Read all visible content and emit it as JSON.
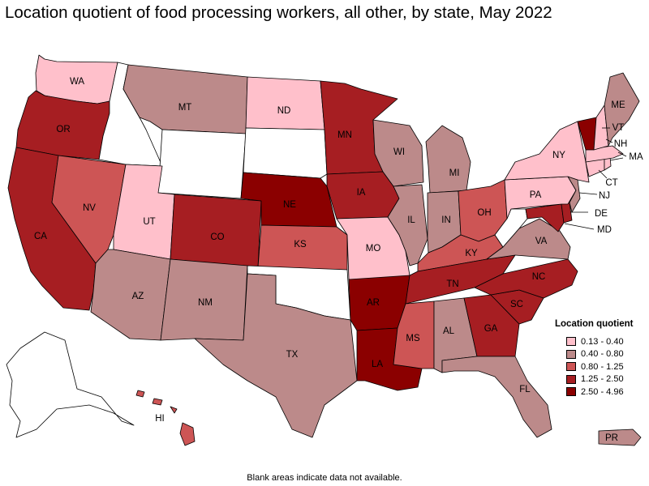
{
  "title": "Location quotient of food processing workers, all other, by state, May 2022",
  "legend": {
    "title": "Location quotient",
    "bins": [
      {
        "label": "0.13 - 0.40",
        "color": "#ffc0cb"
      },
      {
        "label": "0.40 - 0.80",
        "color": "#bc8a8a"
      },
      {
        "label": "0.80 - 1.25",
        "color": "#cd5555"
      },
      {
        "label": "1.25 - 2.50",
        "color": "#a61e22"
      },
      {
        "label": "2.50 - 4.96",
        "color": "#8b0000"
      }
    ]
  },
  "footnote": "Blank areas indicate data not available.",
  "no_data_color": "#ffffff",
  "states": [
    {
      "abbr": "WA",
      "bin": 0
    },
    {
      "abbr": "OR",
      "bin": 3
    },
    {
      "abbr": "CA",
      "bin": 3
    },
    {
      "abbr": "NV",
      "bin": 2
    },
    {
      "abbr": "ID",
      "bin": null
    },
    {
      "abbr": "MT",
      "bin": 1
    },
    {
      "abbr": "WY",
      "bin": null
    },
    {
      "abbr": "UT",
      "bin": 0
    },
    {
      "abbr": "AZ",
      "bin": 1
    },
    {
      "abbr": "CO",
      "bin": 3
    },
    {
      "abbr": "NM",
      "bin": 1
    },
    {
      "abbr": "ND",
      "bin": 0
    },
    {
      "abbr": "SD",
      "bin": null
    },
    {
      "abbr": "NE",
      "bin": 4
    },
    {
      "abbr": "KS",
      "bin": 2
    },
    {
      "abbr": "OK",
      "bin": null
    },
    {
      "abbr": "TX",
      "bin": 1
    },
    {
      "abbr": "MN",
      "bin": 3
    },
    {
      "abbr": "IA",
      "bin": 3
    },
    {
      "abbr": "MO",
      "bin": 0
    },
    {
      "abbr": "AR",
      "bin": 4
    },
    {
      "abbr": "LA",
      "bin": 4
    },
    {
      "abbr": "WI",
      "bin": 1
    },
    {
      "abbr": "IL",
      "bin": 1
    },
    {
      "abbr": "MI",
      "bin": 1
    },
    {
      "abbr": "IN",
      "bin": 1
    },
    {
      "abbr": "OH",
      "bin": 2
    },
    {
      "abbr": "KY",
      "bin": 2
    },
    {
      "abbr": "TN",
      "bin": 3
    },
    {
      "abbr": "MS",
      "bin": 2
    },
    {
      "abbr": "AL",
      "bin": 1
    },
    {
      "abbr": "GA",
      "bin": 3
    },
    {
      "abbr": "FL",
      "bin": 1
    },
    {
      "abbr": "SC",
      "bin": 3
    },
    {
      "abbr": "NC",
      "bin": 3
    },
    {
      "abbr": "VA",
      "bin": 1
    },
    {
      "abbr": "WV",
      "bin": null
    },
    {
      "abbr": "MD",
      "bin": 3
    },
    {
      "abbr": "DE",
      "bin": 3
    },
    {
      "abbr": "PA",
      "bin": 0
    },
    {
      "abbr": "NJ",
      "bin": 1
    },
    {
      "abbr": "NY",
      "bin": 0
    },
    {
      "abbr": "CT",
      "bin": 0
    },
    {
      "abbr": "RI",
      "bin": 0
    },
    {
      "abbr": "MA",
      "bin": 0
    },
    {
      "abbr": "VT",
      "bin": 4
    },
    {
      "abbr": "NH",
      "bin": 0
    },
    {
      "abbr": "ME",
      "bin": 1
    },
    {
      "abbr": "AK",
      "bin": null
    },
    {
      "abbr": "HI",
      "bin": 2
    },
    {
      "abbr": "PR",
      "bin": 1
    }
  ]
}
